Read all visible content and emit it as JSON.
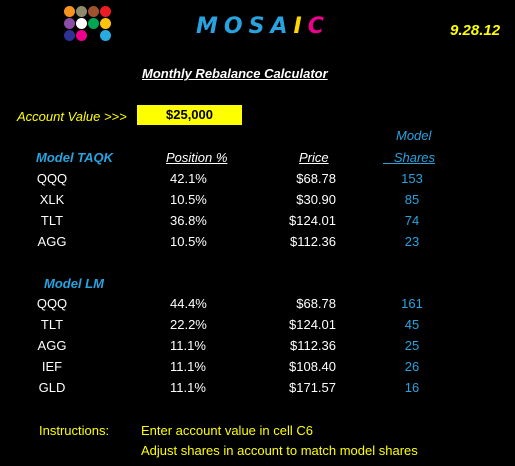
{
  "logo": {
    "dot_colors": [
      "#f7941d",
      "#8f8a6c",
      "#a0522d",
      "#ed1c24",
      "#8b4ea6",
      "#ffffff",
      "#00a651",
      "#ffc20e",
      "#2e3192",
      "#ec008c",
      "#29abe2"
    ],
    "letters": [
      {
        "char": "M",
        "color": "#29a3e0"
      },
      {
        "char": "O",
        "color": "#29a3e0"
      },
      {
        "char": "S",
        "color": "#29a3e0"
      },
      {
        "char": "A",
        "color": "#29a3e0"
      },
      {
        "char": "I",
        "color": "#ffd700"
      },
      {
        "char": "C",
        "color": "#ec008c"
      }
    ]
  },
  "header": {
    "date": "9.28.12",
    "subtitle": "Monthly Rebalance Calculator"
  },
  "account": {
    "label": "Account Value >>>",
    "value": "$25,000"
  },
  "columns": {
    "position": "Position  %",
    "price": "Price",
    "model_shares_line1": "Model",
    "model_shares_line2": "Shares"
  },
  "model_taqk": {
    "name": "Model TAQK",
    "rows": [
      {
        "ticker": "QQQ",
        "position": "42.1%",
        "price": "$68.78",
        "shares": "153"
      },
      {
        "ticker": "XLK",
        "position": "10.5%",
        "price": "$30.90",
        "shares": "85"
      },
      {
        "ticker": "TLT",
        "position": "36.8%",
        "price": "$124.01",
        "shares": "74"
      },
      {
        "ticker": "AGG",
        "position": "10.5%",
        "price": "$112.36",
        "shares": "23"
      }
    ]
  },
  "model_lm": {
    "name": "Model LM",
    "rows": [
      {
        "ticker": "QQQ",
        "position": "44.4%",
        "price": "$68.78",
        "shares": "161"
      },
      {
        "ticker": "TLT",
        "position": "22.2%",
        "price": "$124.01",
        "shares": "45"
      },
      {
        "ticker": "AGG",
        "position": "11.1%",
        "price": "$112.36",
        "shares": "25"
      },
      {
        "ticker": "IEF",
        "position": "11.1%",
        "price": "$108.40",
        "shares": "26"
      },
      {
        "ticker": "GLD",
        "position": "11.1%",
        "price": "$171.57",
        "shares": "16"
      }
    ]
  },
  "instructions": {
    "label": "Instructions:",
    "line1": "Enter account value in cell C6",
    "line2": "Adjust shares in account to match model shares"
  }
}
